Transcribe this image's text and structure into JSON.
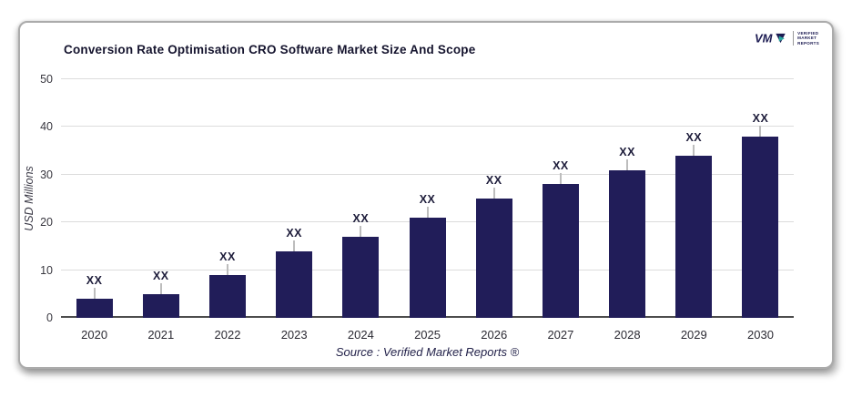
{
  "header": {
    "logo": {
      "mark": "VMR",
      "lines": [
        "VERIFIED",
        "MARKET",
        "REPORTS"
      ],
      "navy": "#1c1b52",
      "teal": "#2aa8a0"
    }
  },
  "chart_data": {
    "type": "bar",
    "title": "Conversion Rate Optimisation CRO Software Market Size And Scope",
    "categories": [
      "2020",
      "2021",
      "2022",
      "2023",
      "2024",
      "2025",
      "2026",
      "2027",
      "2028",
      "2029",
      "2030"
    ],
    "values": [
      4,
      5,
      9,
      14,
      17,
      21,
      25,
      28,
      31,
      34,
      38
    ],
    "bar_labels": [
      "XX",
      "XX",
      "XX",
      "XX",
      "XX",
      "XX",
      "XX",
      "XX",
      "XX",
      "XX",
      "XX"
    ],
    "xlabel": "",
    "ylabel": "USD Millions",
    "yticks": [
      0,
      10,
      20,
      30,
      40,
      50
    ],
    "ylim": [
      0,
      50
    ],
    "grid": true,
    "legend": "none",
    "bar_color": "#211d59",
    "source": "Source : Verified Market Reports ®"
  }
}
